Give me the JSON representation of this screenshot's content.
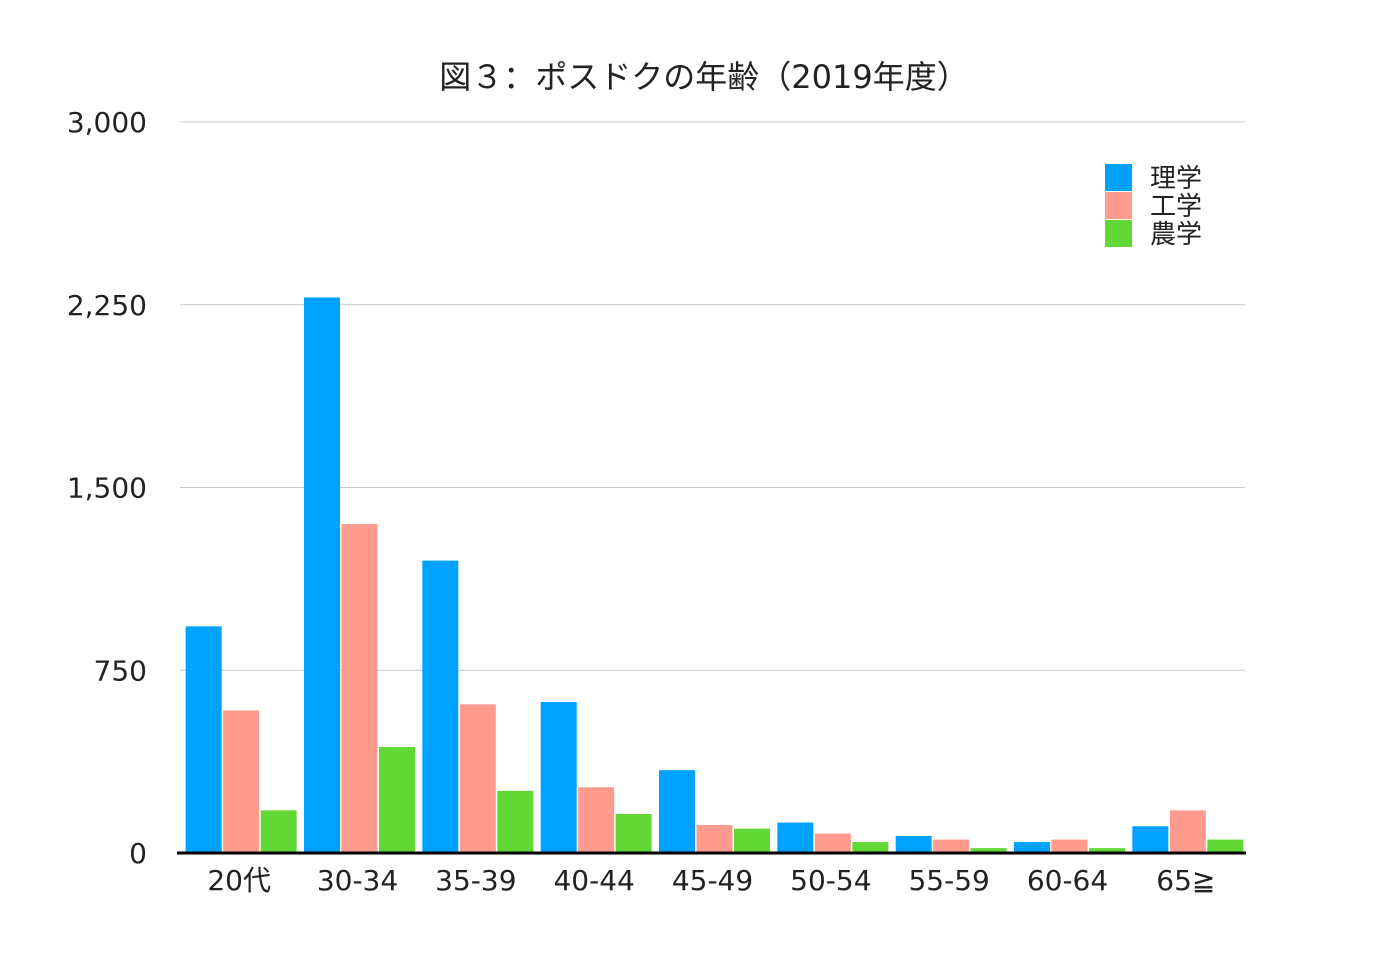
{
  "chart_data": {
    "type": "bar",
    "title": "図３：ポスドクの年齢（2019年度）",
    "xlabel": "",
    "ylabel": "",
    "categories": [
      "20代",
      "30-34",
      "35-39",
      "40-44",
      "45-49",
      "50-54",
      "55-59",
      "60-64",
      "65≧"
    ],
    "series": [
      {
        "name": "理学",
        "color": "#00a2ff",
        "values": [
          930,
          2280,
          1200,
          620,
          340,
          125,
          70,
          45,
          110
        ]
      },
      {
        "name": "工学",
        "color": "#ff9a8e",
        "values": [
          585,
          1350,
          610,
          270,
          115,
          80,
          55,
          55,
          175
        ]
      },
      {
        "name": "農学",
        "color": "#61d836",
        "values": [
          175,
          435,
          255,
          160,
          100,
          45,
          20,
          20,
          55
        ]
      }
    ],
    "ylim": [
      0,
      3000
    ],
    "yticks": [
      0,
      750,
      1500,
      2250,
      3000
    ],
    "ytick_labels": [
      "0",
      "750",
      "1,500",
      "2,250",
      "3,000"
    ],
    "grid": true,
    "legend_position": "top-right"
  }
}
